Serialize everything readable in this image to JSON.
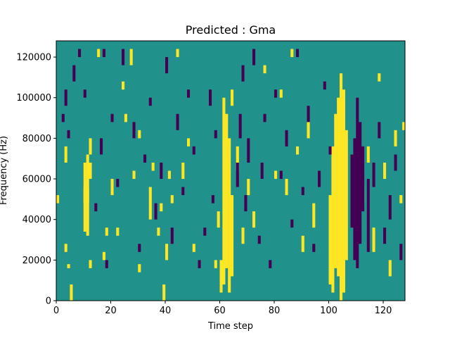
{
  "chart_data": {
    "type": "heatmap",
    "title": "Predicted : Gma",
    "xlabel": "Time step",
    "ylabel": "Frequency (Hz)",
    "xlim": [
      0,
      128
    ],
    "ylim": [
      0,
      128000
    ],
    "x_ticks": [
      0,
      20,
      40,
      60,
      80,
      100,
      120
    ],
    "y_ticks": [
      0,
      20000,
      40000,
      60000,
      80000,
      100000,
      120000
    ],
    "grid": false,
    "legend": "none",
    "colors": {
      "background": "#21918c",
      "high": "#fde725",
      "low": "#440154"
    },
    "bins": {
      "time_steps": 128,
      "frequency_bins": 64,
      "frequency_bin_hz": 2000
    },
    "high_cells": [
      [
        0,
        24,
        26
      ],
      [
        3,
        34,
        38
      ],
      [
        3,
        12,
        14
      ],
      [
        4,
        8,
        9
      ],
      [
        5,
        0,
        4
      ],
      [
        10,
        25,
        34
      ],
      [
        11,
        16,
        28
      ],
      [
        10,
        17,
        25
      ],
      [
        12,
        30,
        34
      ],
      [
        11,
        24,
        36
      ],
      [
        12,
        8,
        10
      ],
      [
        10,
        24,
        28
      ],
      [
        12,
        36,
        40
      ],
      [
        15,
        60,
        62
      ],
      [
        17,
        10,
        12
      ],
      [
        18,
        16,
        18
      ],
      [
        20,
        26,
        30
      ],
      [
        22,
        16,
        18
      ],
      [
        24,
        52,
        54
      ],
      [
        25,
        44,
        46
      ],
      [
        27,
        58,
        62
      ],
      [
        28,
        30,
        32
      ],
      [
        30,
        40,
        42
      ],
      [
        30,
        7,
        9
      ],
      [
        34,
        20,
        28
      ],
      [
        35,
        32,
        34
      ],
      [
        37,
        16,
        18
      ],
      [
        38,
        22,
        24
      ],
      [
        39,
        0,
        4
      ],
      [
        40,
        10,
        14
      ],
      [
        41,
        30,
        32
      ],
      [
        42,
        24,
        26
      ],
      [
        44,
        60,
        62
      ],
      [
        46,
        30,
        34
      ],
      [
        48,
        38,
        40
      ],
      [
        50,
        12,
        14
      ],
      [
        58,
        8,
        10
      ],
      [
        59,
        18,
        22
      ],
      [
        60,
        2,
        10
      ],
      [
        61,
        4,
        50
      ],
      [
        62,
        8,
        46
      ],
      [
        63,
        2,
        40
      ],
      [
        64,
        6,
        26
      ],
      [
        64,
        48,
        52
      ],
      [
        66,
        32,
        38
      ],
      [
        68,
        14,
        18
      ],
      [
        70,
        26,
        30
      ],
      [
        72,
        18,
        22
      ],
      [
        76,
        56,
        58
      ],
      [
        80,
        30,
        32
      ],
      [
        82,
        50,
        52
      ],
      [
        84,
        26,
        30
      ],
      [
        86,
        60,
        62
      ],
      [
        88,
        36,
        38
      ],
      [
        90,
        12,
        16
      ],
      [
        92,
        40,
        44
      ],
      [
        94,
        18,
        24
      ],
      [
        100,
        4,
        26
      ],
      [
        101,
        2,
        38
      ],
      [
        102,
        8,
        46
      ],
      [
        103,
        6,
        50
      ],
      [
        104,
        0,
        56
      ],
      [
        105,
        2,
        52
      ],
      [
        106,
        10,
        42
      ],
      [
        108,
        30,
        36
      ],
      [
        112,
        24,
        28
      ],
      [
        114,
        34,
        38
      ],
      [
        116,
        12,
        18
      ],
      [
        118,
        54,
        56
      ],
      [
        120,
        30,
        34
      ],
      [
        122,
        6,
        10
      ],
      [
        124,
        38,
        42
      ],
      [
        126,
        24,
        26
      ],
      [
        127,
        42,
        44
      ]
    ],
    "low_cells": [
      [
        2,
        44,
        46
      ],
      [
        3,
        48,
        52
      ],
      [
        4,
        40,
        42
      ],
      [
        6,
        54,
        58
      ],
      [
        8,
        60,
        62
      ],
      [
        10,
        50,
        52
      ],
      [
        14,
        22,
        24
      ],
      [
        16,
        36,
        40
      ],
      [
        17,
        60,
        62
      ],
      [
        18,
        8,
        10
      ],
      [
        20,
        44,
        46
      ],
      [
        22,
        28,
        30
      ],
      [
        24,
        58,
        62
      ],
      [
        28,
        40,
        44
      ],
      [
        30,
        12,
        14
      ],
      [
        32,
        34,
        36
      ],
      [
        34,
        48,
        50
      ],
      [
        36,
        20,
        24
      ],
      [
        38,
        30,
        34
      ],
      [
        40,
        56,
        60
      ],
      [
        42,
        14,
        18
      ],
      [
        44,
        42,
        46
      ],
      [
        46,
        26,
        28
      ],
      [
        48,
        50,
        52
      ],
      [
        50,
        36,
        38
      ],
      [
        52,
        8,
        10
      ],
      [
        54,
        16,
        18
      ],
      [
        56,
        48,
        52
      ],
      [
        57,
        24,
        26
      ],
      [
        58,
        40,
        42
      ],
      [
        66,
        28,
        34
      ],
      [
        67,
        40,
        46
      ],
      [
        68,
        54,
        58
      ],
      [
        69,
        22,
        26
      ],
      [
        70,
        34,
        40
      ],
      [
        72,
        58,
        62
      ],
      [
        74,
        14,
        16
      ],
      [
        75,
        30,
        34
      ],
      [
        76,
        44,
        46
      ],
      [
        78,
        8,
        10
      ],
      [
        80,
        50,
        52
      ],
      [
        82,
        30,
        32
      ],
      [
        84,
        38,
        42
      ],
      [
        86,
        18,
        20
      ],
      [
        88,
        60,
        62
      ],
      [
        90,
        26,
        28
      ],
      [
        92,
        44,
        48
      ],
      [
        94,
        12,
        14
      ],
      [
        96,
        28,
        32
      ],
      [
        98,
        52,
        54
      ],
      [
        100,
        36,
        38
      ],
      [
        108,
        18,
        36
      ],
      [
        109,
        10,
        40
      ],
      [
        110,
        8,
        50
      ],
      [
        111,
        14,
        44
      ],
      [
        112,
        22,
        38
      ],
      [
        114,
        12,
        30
      ],
      [
        116,
        28,
        34
      ],
      [
        118,
        40,
        44
      ],
      [
        120,
        14,
        18
      ],
      [
        122,
        20,
        26
      ],
      [
        124,
        32,
        36
      ],
      [
        126,
        10,
        14
      ]
    ]
  }
}
